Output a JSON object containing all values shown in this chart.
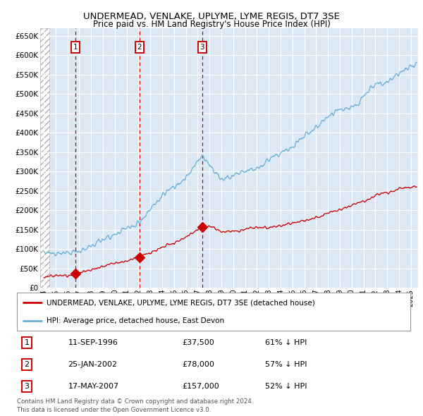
{
  "title": "UNDERMEAD, VENLAKE, UPLYME, LYME REGIS, DT7 3SE",
  "subtitle": "Price paid vs. HM Land Registry's House Price Index (HPI)",
  "legend_line1": "UNDERMEAD, VENLAKE, UPLYME, LYME REGIS, DT7 3SE (detached house)",
  "legend_line2": "HPI: Average price, detached house, East Devon",
  "transactions": [
    {
      "num": 1,
      "date": "11-SEP-1996",
      "price": 37500,
      "pct": "61%",
      "direction": "↓"
    },
    {
      "num": 2,
      "date": "25-JAN-2002",
      "price": 78000,
      "pct": "57%",
      "direction": "↓"
    },
    {
      "num": 3,
      "date": "17-MAY-2007",
      "price": 157000,
      "pct": "52%",
      "direction": "↓"
    }
  ],
  "transaction_dates_decimal": [
    1996.7,
    2002.07,
    2007.38
  ],
  "transaction_prices": [
    37500,
    78000,
    157000
  ],
  "footnote1": "Contains HM Land Registry data © Crown copyright and database right 2024.",
  "footnote2": "This data is licensed under the Open Government Licence v3.0.",
  "hpi_color": "#6baed6",
  "price_color": "#cc0000",
  "background_color": "#dce9f5",
  "grid_color": "#ffffff",
  "vline_color": "#cc0000",
  "ylim": [
    0,
    670000
  ],
  "xlim_start": 1993.7,
  "xlim_end": 2025.6,
  "hatch_region_end": 1994.5,
  "yticks": [
    0,
    50000,
    100000,
    150000,
    200000,
    250000,
    300000,
    350000,
    400000,
    450000,
    500000,
    550000,
    600000,
    650000
  ],
  "xtick_start": 1994,
  "xtick_end": 2025
}
